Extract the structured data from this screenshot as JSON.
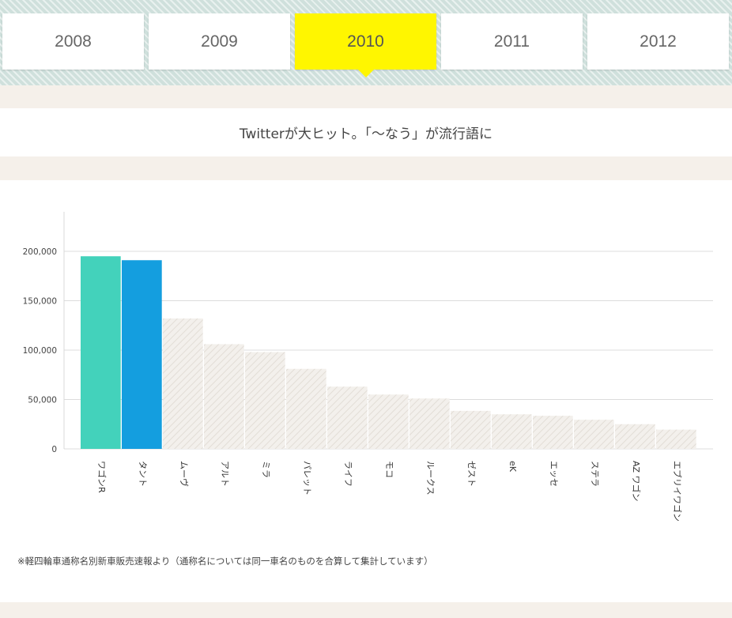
{
  "tabs": [
    {
      "label": "2008",
      "active": false
    },
    {
      "label": "2009",
      "active": false
    },
    {
      "label": "2010",
      "active": true
    },
    {
      "label": "2011",
      "active": false
    },
    {
      "label": "2012",
      "active": false
    }
  ],
  "headline": "Twitterが大ヒット。「〜なう」が流行語に",
  "note": "※軽四輪車通称名別新車販売速報より（通称名については同一車名のものを合算して集計しています）",
  "colors": {
    "tab_active": "#fff600",
    "bar_first": "#43d2bb",
    "bar_second": "#149edf",
    "bar_other": "#ebe7e1"
  },
  "chart_data": {
    "type": "bar",
    "categories": [
      "ワゴンR",
      "タント",
      "ムーヴ",
      "アルト",
      "ミラ",
      "パレット",
      "ライフ",
      "モコ",
      "ルークス",
      "ゼスト",
      "eK",
      "エッセ",
      "ステラ",
      "AZ ワゴン",
      "エブリイワゴン"
    ],
    "values": [
      195000,
      191000,
      132000,
      106000,
      98000,
      81000,
      63000,
      55000,
      51000,
      38500,
      35000,
      33500,
      29500,
      25000,
      19500
    ],
    "yticks": [
      "0",
      "50,000",
      "100,000",
      "150,000",
      "200,000"
    ],
    "ylim": [
      0,
      240000
    ],
    "grid": true,
    "title": "",
    "xlabel": "",
    "ylabel": ""
  }
}
